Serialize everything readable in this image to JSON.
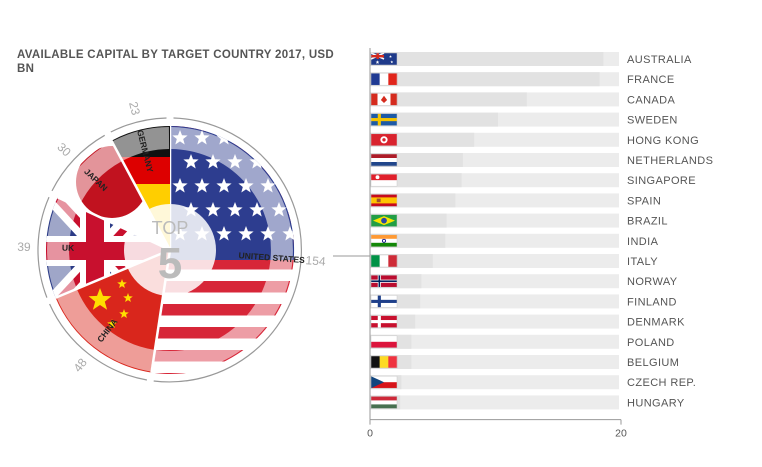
{
  "title": "AVAILABLE CAPITAL BY TARGET COUNTRY 2017, USD BN",
  "colors": {
    "track": "#ececec",
    "label": "#555555",
    "value": "#aaaaaa",
    "axis": "#999999"
  },
  "chart_data": [
    {
      "type": "pie",
      "center_label": {
        "line1": "TOP",
        "line2": "5"
      },
      "slices": [
        {
          "name": "UNITED STATES",
          "value": 154,
          "flag": "us-flag"
        },
        {
          "name": "CHINA",
          "value": 48,
          "flag": "china-flag"
        },
        {
          "name": "UK",
          "value": 39,
          "flag": "uk-flag"
        },
        {
          "name": "JAPAN",
          "value": 30,
          "flag": "japan-flag"
        },
        {
          "name": "GERMANY",
          "value": 23,
          "flag": "germany-flag"
        }
      ]
    },
    {
      "type": "bar",
      "orientation": "horizontal",
      "xlim": [
        0,
        20
      ],
      "x_ticks": [
        "0",
        "20"
      ],
      "categories": [
        "AUSTRALIA",
        "FRANCE",
        "CANADA",
        "SWEDEN",
        "HONG KONG",
        "NETHERLANDS",
        "SINGAPORE",
        "SPAIN",
        "BRAZIL",
        "INDIA",
        "ITALY",
        "NORWAY",
        "FINLAND",
        "DENMARK",
        "POLAND",
        "BELGIUM",
        "CZECH REP.",
        "HUNGARY"
      ],
      "values": [
        18.6,
        18.3,
        12.5,
        10.2,
        8.3,
        7.4,
        7.3,
        6.8,
        6.1,
        6.0,
        5.0,
        4.1,
        4.0,
        3.6,
        3.3,
        3.3,
        2.5,
        2.4
      ],
      "flags": [
        "australia-flag",
        "france-flag",
        "canada-flag",
        "sweden-flag",
        "hong-kong-flag",
        "netherlands-flag",
        "singapore-flag",
        "spain-flag",
        "brazil-flag",
        "india-flag",
        "italy-flag",
        "norway-flag",
        "finland-flag",
        "denmark-flag",
        "poland-flag",
        "belgium-flag",
        "czech-flag",
        "hungary-flag"
      ]
    }
  ]
}
